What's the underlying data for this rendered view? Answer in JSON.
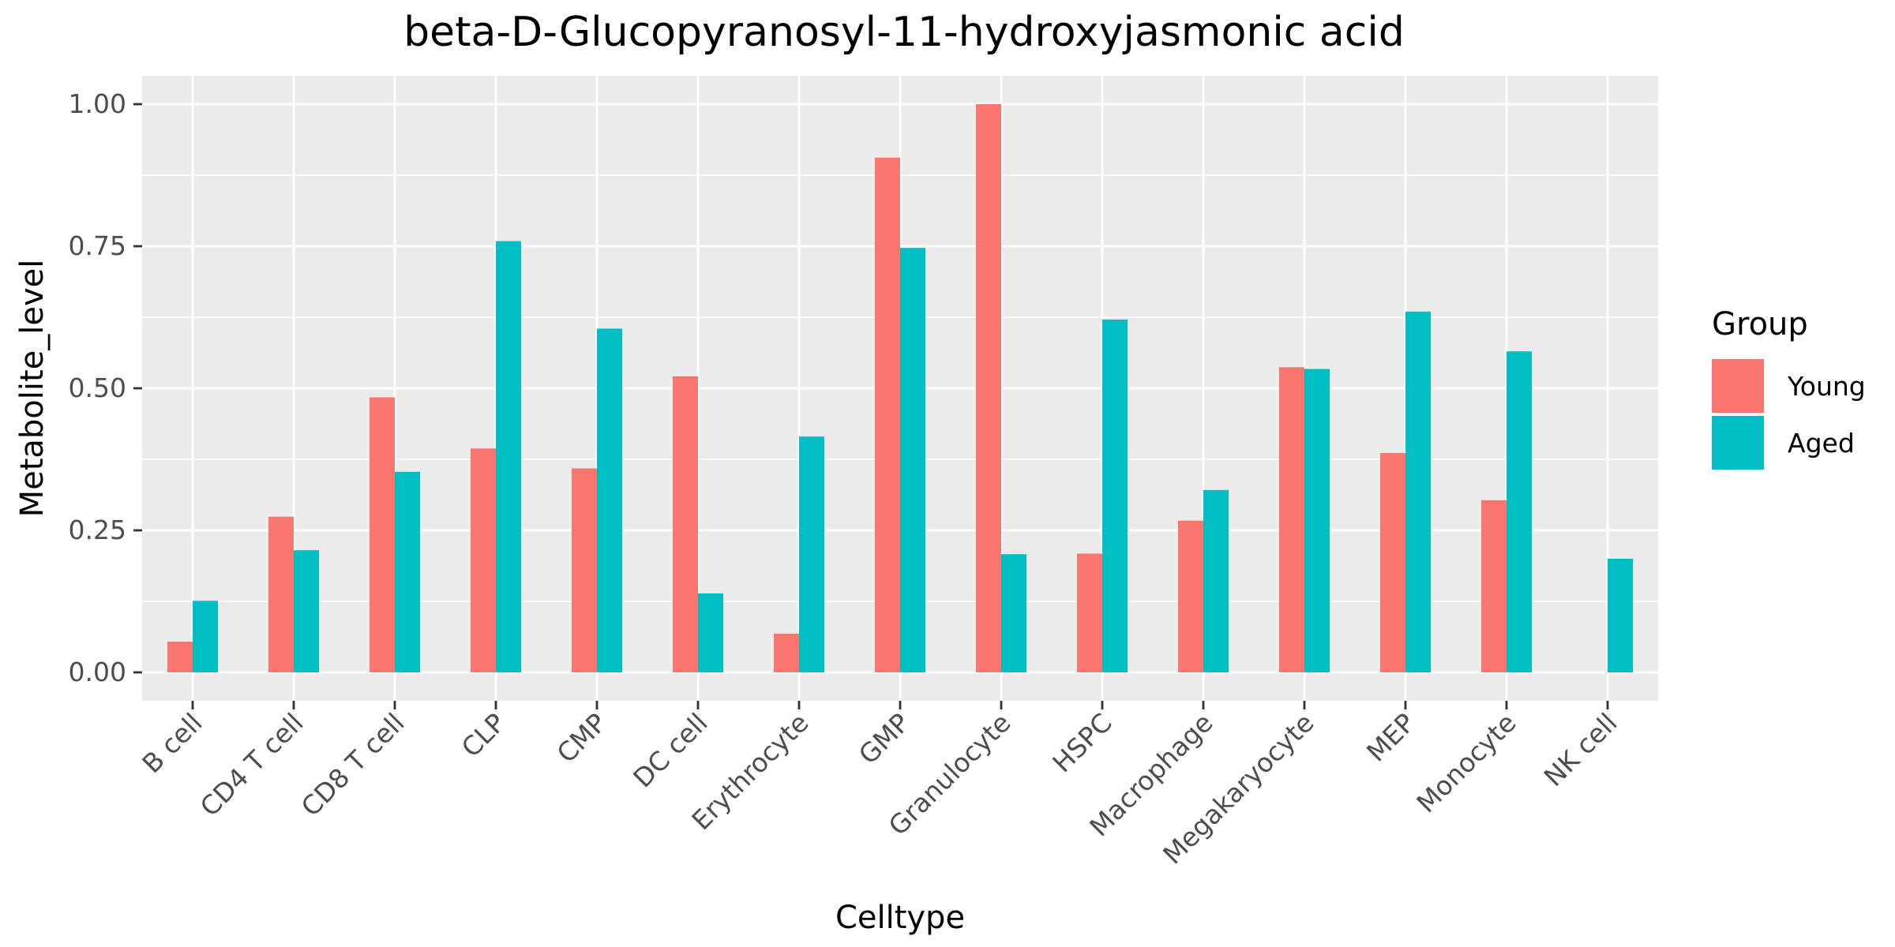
{
  "chart_data": {
    "type": "bar",
    "title": "beta-D-Glucopyranosyl-11-hydroxyjasmonic acid",
    "xlabel": "Celltype",
    "ylabel": "Metabolite_level",
    "categories": [
      "B cell",
      "CD4 T cell",
      "CD8 T cell",
      "CLP",
      "CMP",
      "DC cell",
      "Erythrocyte",
      "GMP",
      "Granulocyte",
      "HSPC",
      "Macrophage",
      "Megakaryocyte",
      "MEP",
      "Monocyte",
      "NK cell"
    ],
    "series": [
      {
        "name": "Young",
        "color": "#F8766D",
        "values": [
          0.054,
          0.274,
          0.484,
          0.394,
          0.359,
          0.521,
          0.068,
          0.906,
          1.0,
          0.209,
          0.267,
          0.537,
          0.386,
          0.303,
          0.0
        ]
      },
      {
        "name": "Aged",
        "color": "#00BFC4",
        "values": [
          0.126,
          0.215,
          0.353,
          0.759,
          0.605,
          0.139,
          0.415,
          0.747,
          0.208,
          0.621,
          0.321,
          0.534,
          0.635,
          0.565,
          0.2
        ]
      }
    ],
    "ylim": [
      -0.05,
      1.05
    ],
    "yticks": [
      0.0,
      0.25,
      0.5,
      0.75,
      1.0
    ],
    "ytick_labels": [
      "0.00",
      "0.25",
      "0.50",
      "0.75",
      "1.00"
    ],
    "legend_title": "Group",
    "legend_position": "right",
    "grid": true,
    "panel_color": "#EBEBEB",
    "grid_color": "#FFFFFF"
  }
}
